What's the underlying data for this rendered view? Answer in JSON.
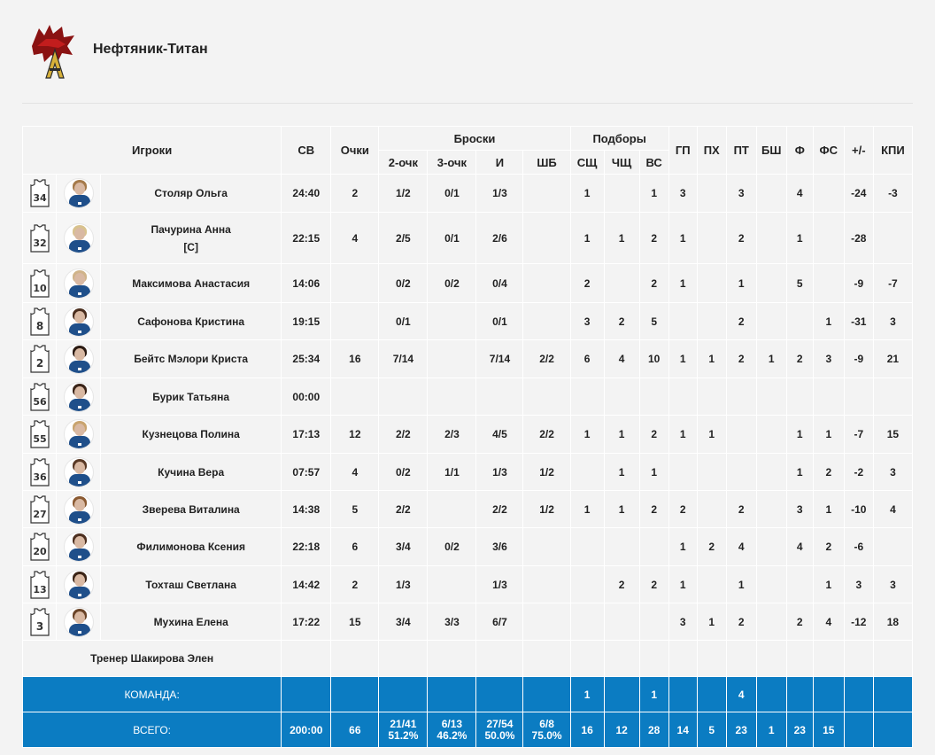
{
  "team": {
    "name": "Нефтяник-Титан",
    "logo_icon": "bear-logo-icon"
  },
  "headers": {
    "players": "Игроки",
    "min": "СВ",
    "pts": "Очки",
    "shots": "Броски",
    "rebounds": "Подборы",
    "fg2": "2-очк",
    "fg3": "3-очк",
    "fg": "И",
    "ft": "ШБ",
    "oreb": "СЩ",
    "dreb": "ЧЩ",
    "treb": "ВС",
    "ast": "ГП",
    "stl": "ПХ",
    "tov": "ПТ",
    "blk": "БШ",
    "pf": "Ф",
    "fd": "ФС",
    "pm": "+/-",
    "eff": "КПИ"
  },
  "players": [
    {
      "number": "34",
      "name": "Столяр Ольга",
      "captain": "",
      "min": "24:40",
      "pts": "2",
      "fg2": "1/2",
      "fg3": "0/1",
      "fg": "1/3",
      "ft": "",
      "oreb": "1",
      "dreb": "",
      "treb": "1",
      "ast": "3",
      "stl": "",
      "tov": "3",
      "blk": "",
      "pf": "4",
      "fd": "",
      "pm": "-24",
      "eff": "-3",
      "hair": "#a57a4a"
    },
    {
      "number": "32",
      "name": "Пачурина Анна",
      "captain": "[C]",
      "min": "22:15",
      "pts": "4",
      "fg2": "2/5",
      "fg3": "0/1",
      "fg": "2/6",
      "ft": "",
      "oreb": "1",
      "dreb": "1",
      "treb": "2",
      "ast": "1",
      "stl": "",
      "tov": "2",
      "blk": "",
      "pf": "1",
      "fd": "",
      "pm": "-28",
      "eff": "",
      "hair": "#d8c28e"
    },
    {
      "number": "10",
      "name": "Максимова Анастасия",
      "captain": "",
      "min": "14:06",
      "pts": "",
      "fg2": "0/2",
      "fg3": "0/2",
      "fg": "0/4",
      "ft": "",
      "oreb": "2",
      "dreb": "",
      "treb": "2",
      "ast": "1",
      "stl": "",
      "tov": "1",
      "blk": "",
      "pf": "5",
      "fd": "",
      "pm": "-9",
      "eff": "-7",
      "hair": "#d0b48a"
    },
    {
      "number": "8",
      "name": "Сафонова Кристина",
      "captain": "",
      "min": "19:15",
      "pts": "",
      "fg2": "0/1",
      "fg3": "",
      "fg": "0/1",
      "ft": "",
      "oreb": "3",
      "dreb": "2",
      "treb": "5",
      "ast": "",
      "stl": "",
      "tov": "2",
      "blk": "",
      "pf": "",
      "fd": "1",
      "pm": "-31",
      "eff": "3",
      "hair": "#4a2e1e"
    },
    {
      "number": "2",
      "name": "Бейтс Мэлори Криста",
      "captain": "",
      "min": "25:34",
      "pts": "16",
      "fg2": "7/14",
      "fg3": "",
      "fg": "7/14",
      "ft": "2/2",
      "oreb": "6",
      "dreb": "4",
      "treb": "10",
      "ast": "1",
      "stl": "1",
      "tov": "2",
      "blk": "1",
      "pf": "2",
      "fd": "3",
      "pm": "-9",
      "eff": "21",
      "hair": "#2a1a12"
    },
    {
      "number": "56",
      "name": "Бурик Татьяна",
      "captain": "",
      "min": "00:00",
      "pts": "",
      "fg2": "",
      "fg3": "",
      "fg": "",
      "ft": "",
      "oreb": "",
      "dreb": "",
      "treb": "",
      "ast": "",
      "stl": "",
      "tov": "",
      "blk": "",
      "pf": "",
      "fd": "",
      "pm": "",
      "eff": "",
      "hair": "#3a2418"
    },
    {
      "number": "55",
      "name": "Кузнецова Полина",
      "captain": "",
      "min": "17:13",
      "pts": "12",
      "fg2": "2/2",
      "fg3": "2/3",
      "fg": "4/5",
      "ft": "2/2",
      "oreb": "1",
      "dreb": "1",
      "treb": "2",
      "ast": "1",
      "stl": "1",
      "tov": "",
      "blk": "",
      "pf": "1",
      "fd": "1",
      "pm": "-7",
      "eff": "15",
      "hair": "#c9a46e"
    },
    {
      "number": "36",
      "name": "Кучина Вера",
      "captain": "",
      "min": "07:57",
      "pts": "4",
      "fg2": "0/2",
      "fg3": "1/1",
      "fg": "1/3",
      "ft": "1/2",
      "oreb": "",
      "dreb": "1",
      "treb": "1",
      "ast": "",
      "stl": "",
      "tov": "",
      "blk": "",
      "pf": "1",
      "fd": "2",
      "pm": "-2",
      "eff": "3",
      "hair": "#5a3a26"
    },
    {
      "number": "27",
      "name": "Зверева Виталина",
      "captain": "",
      "min": "14:38",
      "pts": "5",
      "fg2": "2/2",
      "fg3": "",
      "fg": "2/2",
      "ft": "1/2",
      "oreb": "1",
      "dreb": "1",
      "treb": "2",
      "ast": "2",
      "stl": "",
      "tov": "2",
      "blk": "",
      "pf": "3",
      "fd": "1",
      "pm": "-10",
      "eff": "4",
      "hair": "#8a5a32"
    },
    {
      "number": "20",
      "name": "Филимонова Ксения",
      "captain": "",
      "min": "22:18",
      "pts": "6",
      "fg2": "3/4",
      "fg3": "0/2",
      "fg": "3/6",
      "ft": "",
      "oreb": "",
      "dreb": "",
      "treb": "",
      "ast": "1",
      "stl": "2",
      "tov": "4",
      "blk": "",
      "pf": "4",
      "fd": "2",
      "pm": "-6",
      "eff": "",
      "hair": "#4d3020"
    },
    {
      "number": "13",
      "name": "Тохташ Светлана",
      "captain": "",
      "min": "14:42",
      "pts": "2",
      "fg2": "1/3",
      "fg3": "",
      "fg": "1/3",
      "ft": "",
      "oreb": "",
      "dreb": "2",
      "treb": "2",
      "ast": "1",
      "stl": "",
      "tov": "1",
      "blk": "",
      "pf": "",
      "fd": "1",
      "pm": "3",
      "eff": "3",
      "hair": "#3b2416"
    },
    {
      "number": "3",
      "name": "Мухина Елена",
      "captain": "",
      "min": "17:22",
      "pts": "15",
      "fg2": "3/4",
      "fg3": "3/3",
      "fg": "6/7",
      "ft": "",
      "oreb": "",
      "dreb": "",
      "treb": "",
      "ast": "3",
      "stl": "1",
      "tov": "2",
      "blk": "",
      "pf": "2",
      "fd": "4",
      "pm": "-12",
      "eff": "18",
      "hair": "#6a4428"
    }
  ],
  "coach": {
    "label": "Тренер Шакирова Элен"
  },
  "team_row": {
    "label": "КОМАНДА:",
    "min": "",
    "pts": "",
    "fg2": "",
    "fg3": "",
    "fg": "",
    "ft": "",
    "oreb": "1",
    "dreb": "",
    "treb": "1",
    "ast": "",
    "stl": "",
    "tov": "4",
    "blk": "",
    "pf": "",
    "fd": "",
    "pm": "",
    "eff": ""
  },
  "total_row": {
    "label": "ВСЕГО:",
    "min": "200:00",
    "pts": "66",
    "fg2": "21/41",
    "fg2_pct": "51.2%",
    "fg3": "6/13",
    "fg3_pct": "46.2%",
    "fg": "27/54",
    "fg_pct": "50.0%",
    "ft": "6/8",
    "ft_pct": "75.0%",
    "oreb": "16",
    "dreb": "12",
    "treb": "28",
    "ast": "14",
    "stl": "5",
    "tov": "23",
    "blk": "1",
    "pf": "23",
    "fd": "15",
    "pm": "",
    "eff": ""
  },
  "colors": {
    "accent": "#0b7cc2",
    "row_bg": "#f3f3f3"
  }
}
